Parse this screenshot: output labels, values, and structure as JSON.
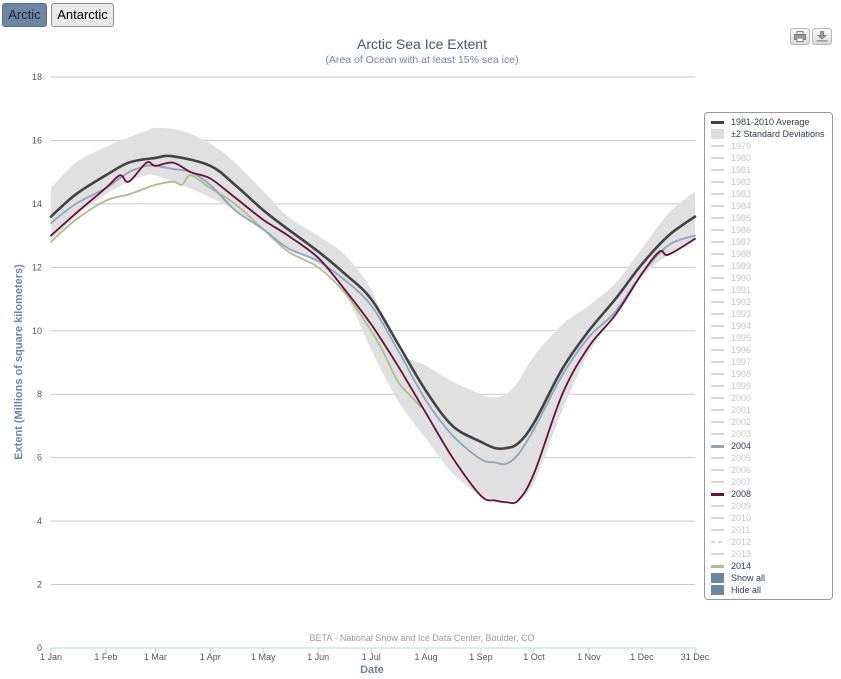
{
  "tabs": [
    {
      "label": "Arctic",
      "active": true
    },
    {
      "label": "Antarctic",
      "active": false
    }
  ],
  "toolbar": {
    "print_icon": "printer-icon",
    "download_icon": "download-icon"
  },
  "chart_data": {
    "type": "line",
    "title": "Arctic Sea Ice Extent",
    "subtitle": "(Area of Ocean with at least 15% sea ice)",
    "xlabel": "Date",
    "ylabel": "Extent (Millions of square kilometers)",
    "ylim": [
      0,
      18
    ],
    "yticks": [
      0,
      2,
      4,
      6,
      8,
      10,
      12,
      14,
      16,
      18
    ],
    "xlim": [
      1,
      365
    ],
    "xticks": [
      {
        "day": 1,
        "label": "1 Jan"
      },
      {
        "day": 32,
        "label": "1 Feb"
      },
      {
        "day": 60,
        "label": "1 Mar"
      },
      {
        "day": 91,
        "label": "1 Apr"
      },
      {
        "day": 121,
        "label": "1 May"
      },
      {
        "day": 152,
        "label": "1 Jun"
      },
      {
        "day": 182,
        "label": "1 Jul"
      },
      {
        "day": 213,
        "label": "1 Aug"
      },
      {
        "day": 244,
        "label": "1 Sep"
      },
      {
        "day": 274,
        "label": "1 Oct"
      },
      {
        "day": 305,
        "label": "1 Nov"
      },
      {
        "day": 335,
        "label": "1 Dec"
      },
      {
        "day": 365,
        "label": "31 Dec"
      }
    ],
    "grid": true,
    "legend_position": "right",
    "credit": "BETA - National Snow and Ice Data Center, Boulder, CO",
    "band": {
      "name": "±2 Standard Deviations",
      "color": "#e0e0e0",
      "x": [
        1,
        15,
        32,
        45,
        55,
        60,
        75,
        91,
        105,
        121,
        135,
        152,
        167,
        182,
        197,
        213,
        228,
        244,
        250,
        258,
        265,
        274,
        290,
        305,
        320,
        335,
        350,
        365
      ],
      "upper": [
        14.5,
        15.3,
        15.8,
        16.1,
        16.3,
        16.4,
        16.3,
        15.9,
        15.3,
        14.4,
        13.6,
        13.0,
        12.4,
        11.3,
        9.4,
        8.9,
        8.4,
        8.0,
        7.9,
        8.0,
        8.4,
        9.2,
        10.2,
        10.8,
        11.5,
        12.6,
        13.7,
        14.4
      ],
      "lower": [
        12.8,
        13.6,
        14.3,
        14.7,
        14.9,
        14.9,
        14.6,
        14.2,
        13.8,
        13.2,
        12.6,
        12.1,
        11.2,
        9.4,
        7.8,
        6.6,
        5.5,
        4.8,
        4.7,
        4.65,
        4.7,
        5.2,
        7.5,
        9.3,
        10.5,
        11.7,
        12.4,
        12.9
      ]
    },
    "series": [
      {
        "name": "1981-2010 Average",
        "color": "#424242",
        "width": 2.6,
        "x": [
          1,
          15,
          32,
          45,
          60,
          70,
          91,
          105,
          121,
          135,
          152,
          167,
          182,
          197,
          213,
          228,
          244,
          252,
          258,
          265,
          274,
          290,
          305,
          320,
          335,
          350,
          365
        ],
        "y": [
          13.6,
          14.3,
          14.9,
          15.3,
          15.45,
          15.5,
          15.2,
          14.6,
          13.8,
          13.2,
          12.5,
          11.8,
          11.0,
          9.6,
          8.1,
          7.0,
          6.5,
          6.3,
          6.3,
          6.45,
          7.1,
          8.8,
          10.0,
          11.0,
          12.1,
          13.0,
          13.6
        ]
      },
      {
        "name": "2004",
        "color": "#8ea4bf",
        "width": 1.8,
        "x": [
          1,
          15,
          32,
          45,
          55,
          60,
          70,
          80,
          91,
          105,
          121,
          135,
          152,
          167,
          182,
          197,
          213,
          228,
          244,
          252,
          258,
          265,
          274,
          290,
          305,
          320,
          335,
          350,
          365
        ],
        "y": [
          13.4,
          14.0,
          14.5,
          15.0,
          15.2,
          15.2,
          15.1,
          15.0,
          14.6,
          13.8,
          13.2,
          12.6,
          12.2,
          11.6,
          10.8,
          9.4,
          7.8,
          6.7,
          5.95,
          5.85,
          5.8,
          6.1,
          6.9,
          8.6,
          9.8,
          10.6,
          11.8,
          12.7,
          13.0
        ]
      },
      {
        "name": "2008",
        "color": "#6b0d3a",
        "width": 1.8,
        "x": [
          1,
          15,
          32,
          40,
          45,
          55,
          60,
          70,
          80,
          91,
          105,
          121,
          135,
          152,
          167,
          182,
          197,
          213,
          228,
          244,
          252,
          258,
          265,
          274,
          290,
          305,
          320,
          335,
          345,
          350,
          365
        ],
        "y": [
          13.0,
          13.7,
          14.5,
          14.9,
          14.7,
          15.3,
          15.2,
          15.3,
          15.0,
          14.8,
          14.2,
          13.5,
          13.0,
          12.3,
          11.3,
          10.2,
          8.9,
          7.4,
          6.0,
          4.8,
          4.65,
          4.6,
          4.65,
          5.5,
          8.0,
          9.5,
          10.5,
          11.8,
          12.5,
          12.4,
          12.9
        ]
      },
      {
        "name": "2014",
        "color": "#a9c08a",
        "width": 1.8,
        "x": [
          1,
          15,
          32,
          45,
          55,
          60,
          70,
          75,
          80,
          91,
          105,
          121,
          135,
          152,
          167,
          182,
          190,
          197,
          205,
          210
        ],
        "y": [
          12.8,
          13.5,
          14.1,
          14.3,
          14.5,
          14.6,
          14.7,
          14.6,
          14.9,
          14.5,
          14.0,
          13.2,
          12.5,
          12.0,
          11.2,
          10.0,
          9.2,
          8.4,
          7.9,
          7.6
        ]
      }
    ],
    "legend": {
      "items": [
        {
          "label": "1981-2010 Average",
          "kind": "line",
          "color": "#424242",
          "active": true
        },
        {
          "label": "±2 Standard Deviations",
          "kind": "box",
          "color": "#dcdcdc",
          "active": true
        },
        {
          "label": "1979",
          "kind": "line",
          "color": "#d5d5d5",
          "active": false
        },
        {
          "label": "1980",
          "kind": "line",
          "color": "#d5d5d5",
          "active": false
        },
        {
          "label": "1981",
          "kind": "line",
          "color": "#d5d5d5",
          "active": false
        },
        {
          "label": "1982",
          "kind": "line",
          "color": "#d5d5d5",
          "active": false
        },
        {
          "label": "1983",
          "kind": "line",
          "color": "#d5d5d5",
          "active": false
        },
        {
          "label": "1984",
          "kind": "line",
          "color": "#d5d5d5",
          "active": false
        },
        {
          "label": "1985",
          "kind": "line",
          "color": "#d5d5d5",
          "active": false
        },
        {
          "label": "1986",
          "kind": "line",
          "color": "#d5d5d5",
          "active": false
        },
        {
          "label": "1987",
          "kind": "line",
          "color": "#d5d5d5",
          "active": false
        },
        {
          "label": "1988",
          "kind": "line",
          "color": "#d5d5d5",
          "active": false
        },
        {
          "label": "1989",
          "kind": "line",
          "color": "#d5d5d5",
          "active": false
        },
        {
          "label": "1990",
          "kind": "line",
          "color": "#d5d5d5",
          "active": false
        },
        {
          "label": "1991",
          "kind": "line",
          "color": "#d5d5d5",
          "active": false
        },
        {
          "label": "1992",
          "kind": "line",
          "color": "#d5d5d5",
          "active": false
        },
        {
          "label": "1993",
          "kind": "line",
          "color": "#d5d5d5",
          "active": false
        },
        {
          "label": "1994",
          "kind": "line",
          "color": "#d5d5d5",
          "active": false
        },
        {
          "label": "1995",
          "kind": "line",
          "color": "#d5d5d5",
          "active": false
        },
        {
          "label": "1996",
          "kind": "line",
          "color": "#d5d5d5",
          "active": false
        },
        {
          "label": "1997",
          "kind": "line",
          "color": "#d5d5d5",
          "active": false
        },
        {
          "label": "1998",
          "kind": "line",
          "color": "#d5d5d5",
          "active": false
        },
        {
          "label": "1999",
          "kind": "line",
          "color": "#d5d5d5",
          "active": false
        },
        {
          "label": "2000",
          "kind": "line",
          "color": "#d5d5d5",
          "active": false
        },
        {
          "label": "2001",
          "kind": "line",
          "color": "#d5d5d5",
          "active": false
        },
        {
          "label": "2002",
          "kind": "line",
          "color": "#d5d5d5",
          "active": false
        },
        {
          "label": "2003",
          "kind": "line",
          "color": "#d5d5d5",
          "active": false
        },
        {
          "label": "2004",
          "kind": "line",
          "color": "#8ea4bf",
          "active": true
        },
        {
          "label": "2005",
          "kind": "line",
          "color": "#d5d5d5",
          "active": false
        },
        {
          "label": "2006",
          "kind": "line",
          "color": "#d5d5d5",
          "active": false
        },
        {
          "label": "2007",
          "kind": "line",
          "color": "#d5d5d5",
          "active": false
        },
        {
          "label": "2008",
          "kind": "line",
          "color": "#6b0d3a",
          "active": true
        },
        {
          "label": "2009",
          "kind": "line",
          "color": "#d5d5d5",
          "active": false
        },
        {
          "label": "2010",
          "kind": "line",
          "color": "#d5d5d5",
          "active": false
        },
        {
          "label": "2011",
          "kind": "line",
          "color": "#d5d5d5",
          "active": false
        },
        {
          "label": "2012",
          "kind": "dashed",
          "color": "#d5d5d5",
          "active": false
        },
        {
          "label": "2013",
          "kind": "line",
          "color": "#d5d5d5",
          "active": false
        },
        {
          "label": "2014",
          "kind": "line",
          "color": "#a9c08a",
          "active": true
        },
        {
          "label": "Show all",
          "kind": "button",
          "color": "#6d87a3",
          "active": true
        },
        {
          "label": "Hide all",
          "kind": "button",
          "color": "#6d87a3",
          "active": true
        }
      ]
    }
  }
}
